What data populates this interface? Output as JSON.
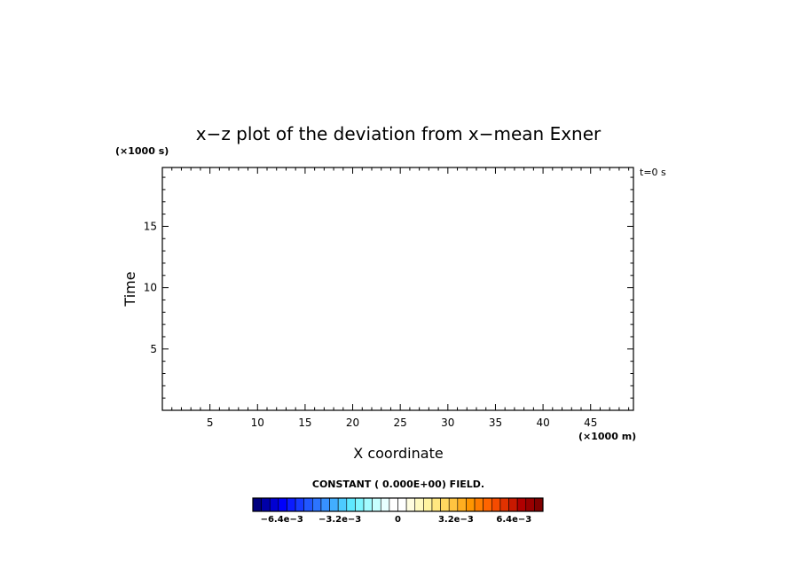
{
  "chart_data": {
    "type": "heatmap",
    "title": "x−z plot of the deviation from x−mean Exner",
    "xlabel": "X coordinate",
    "ylabel": "Time",
    "x_unit": "(×1000 m)",
    "y_unit": "(×1000 s)",
    "time_label": "t=0 s",
    "xlim": [
      0,
      49.5
    ],
    "ylim": [
      0,
      19.8
    ],
    "x_ticks": [
      5,
      10,
      15,
      20,
      25,
      30,
      35,
      40,
      45
    ],
    "y_ticks": [
      5,
      10,
      15
    ],
    "field_note": "CONSTANT ( 0.000E+00) FIELD.",
    "field_value": 0,
    "colorbar": {
      "min": -0.008,
      "max": 0.008,
      "tick_values": [
        -0.0064,
        -0.0032,
        0,
        0.0032,
        0.0064
      ],
      "tick_labels": [
        "−6.4e−3",
        "−3.2e−3",
        "0",
        "3.2e−3",
        "6.4e−3"
      ],
      "colors": [
        "#00007f",
        "#0000a8",
        "#0000d2",
        "#0000fc",
        "#0b1cff",
        "#163aff",
        "#2157ff",
        "#2c74ff",
        "#3791ff",
        "#42aeff",
        "#4dcbff",
        "#5ee8ff",
        "#7ff5ff",
        "#a3fbff",
        "#c7ffff",
        "#e8ffff",
        "#ffffff",
        "#ffffff",
        "#fffde0",
        "#fffac0",
        "#fff4a0",
        "#ffe880",
        "#ffd860",
        "#ffc440",
        "#ffae20",
        "#ff9600",
        "#ff7d00",
        "#ff6400",
        "#f54b00",
        "#e03200",
        "#c81900",
        "#b00000",
        "#980000",
        "#800000"
      ]
    }
  }
}
